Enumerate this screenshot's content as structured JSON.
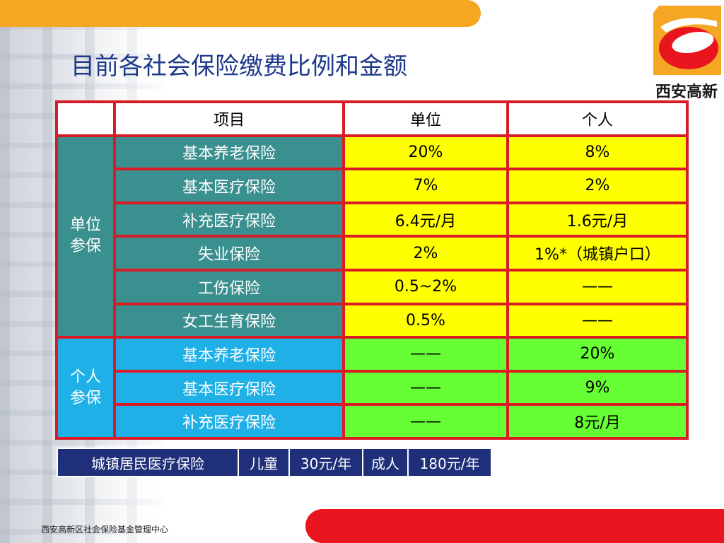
{
  "title": "目前各社会保险缴费比例和金额",
  "logo": {
    "text": "西安高新",
    "brand_red": "#e8141e",
    "brand_orange": "#f5a623"
  },
  "table": {
    "headers": [
      "",
      "项目",
      "单位",
      "个人"
    ],
    "groups": [
      {
        "label_line1": "单位",
        "label_line2": "参保",
        "rows": [
          {
            "item": "基本养老保险",
            "unit": "20%",
            "personal": "8%"
          },
          {
            "item": "基本医疗保险",
            "unit": "7%",
            "personal": "2%"
          },
          {
            "item": "补充医疗保险",
            "unit": "6.4元/月",
            "personal": "1.6元/月"
          },
          {
            "item": "失业保险",
            "unit": "2%",
            "personal": "1%*（城镇户口）"
          },
          {
            "item": "工伤保险",
            "unit": "0.5~2%",
            "personal": "——"
          },
          {
            "item": "女工生育保险",
            "unit": "0.5%",
            "personal": "——"
          }
        ]
      },
      {
        "label_line1": "个人",
        "label_line2": "参保",
        "rows": [
          {
            "item": "基本养老保险",
            "unit": "——",
            "personal": "20%"
          },
          {
            "item": "基本医疗保险",
            "unit": "——",
            "personal": "9%"
          },
          {
            "item": "补充医疗保险",
            "unit": "——",
            "personal": "8元/月"
          }
        ]
      }
    ]
  },
  "resident_insurance": {
    "name": "城镇居民医疗保险",
    "child_label": "儿童",
    "child_fee": "30元/年",
    "adult_label": "成人",
    "adult_fee": "180元/年"
  },
  "footer": "西安高新区社会保险基金管理中心",
  "colors": {
    "grid_border": "#d81b24",
    "employer_group": "#3a8f8f",
    "individual_group": "#1fb0e8",
    "employer_values": "#ffff00",
    "individual_values": "#66ff33",
    "sub_table": "#1f2f7a",
    "title": "#1f3a8a"
  }
}
